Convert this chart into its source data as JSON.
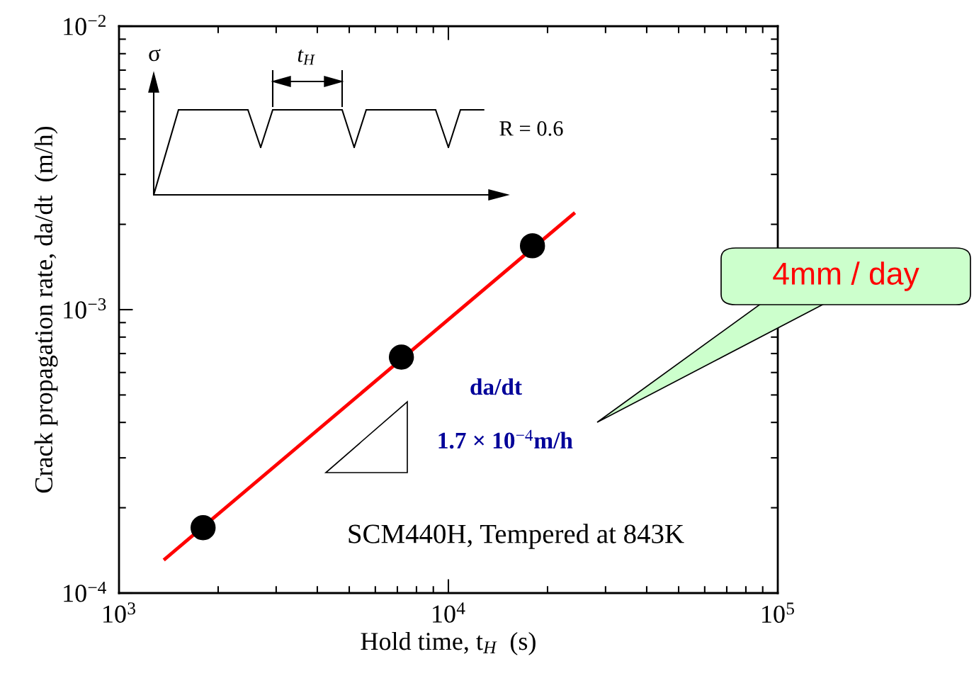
{
  "chart_data": {
    "type": "scatter",
    "xlabel": "Hold time, t$_{H}$  (s)",
    "ylabel": "Crack propagation rate, da/dt  (m/h)",
    "log": "xy",
    "xlim": [
      1000,
      100000
    ],
    "ylim": [
      0.0001,
      0.01
    ],
    "xticks": [
      {
        "value": 1000,
        "label": "10$^{3}$"
      },
      {
        "value": 10000,
        "label": "10$^{4}$"
      },
      {
        "value": 100000,
        "label": "10$^{5}$"
      }
    ],
    "yticks": [
      {
        "value": 0.0001,
        "label": "10$^{−4}$"
      },
      {
        "value": 0.001,
        "label": "10$^{−3}$"
      },
      {
        "value": 0.01,
        "label": "10$^{−2}$"
      }
    ],
    "grid": false,
    "series": [
      {
        "color": "#000000",
        "marker": "circle",
        "x": [
          1800,
          7200,
          18000
        ],
        "values": [
          0.00017,
          0.00068,
          0.00168
        ]
      },
      {
        "type": "line",
        "color": "#ff0000",
        "marker": "none",
        "line_style": "solid",
        "x": [
          1380,
          24000
        ],
        "values": [
          0.000132,
          0.00218
        ]
      }
    ],
    "annotations": [
      "σ",
      "t$_{H}$",
      "R = 0.6",
      "da/dt",
      "1.7 × 10$^{−4}$m/h",
      "SCM440H, Tempered at 843K",
      "4mm / day"
    ]
  }
}
